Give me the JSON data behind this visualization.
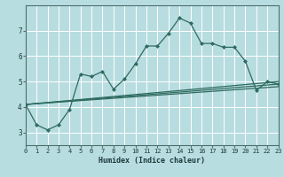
{
  "xlabel": "Humidex (Indice chaleur)",
  "bg_color": "#b8dde0",
  "line_color": "#2e6b60",
  "grid_color": "#ffffff",
  "xlim": [
    0,
    23
  ],
  "ylim": [
    2.5,
    8.0
  ],
  "xticks": [
    0,
    1,
    2,
    3,
    4,
    5,
    6,
    7,
    8,
    9,
    10,
    11,
    12,
    13,
    14,
    15,
    16,
    17,
    18,
    19,
    20,
    21,
    22,
    23
  ],
  "yticks": [
    3,
    4,
    5,
    6,
    7
  ],
  "main_series": [
    4.1,
    3.3,
    3.1,
    3.3,
    3.9,
    5.3,
    5.2,
    5.4,
    4.7,
    5.1,
    5.7,
    6.4,
    6.4,
    6.9,
    7.5,
    7.3,
    6.5,
    6.5,
    6.35,
    6.35,
    5.8,
    4.65,
    5.0,
    4.9
  ],
  "straight_lines": [
    {
      "x0": 0,
      "y0": 4.1,
      "x1": 23,
      "y1": 5.0
    },
    {
      "x0": 0,
      "y0": 4.1,
      "x1": 23,
      "y1": 4.9
    },
    {
      "x0": 0,
      "y0": 4.1,
      "x1": 23,
      "y1": 4.8
    }
  ]
}
